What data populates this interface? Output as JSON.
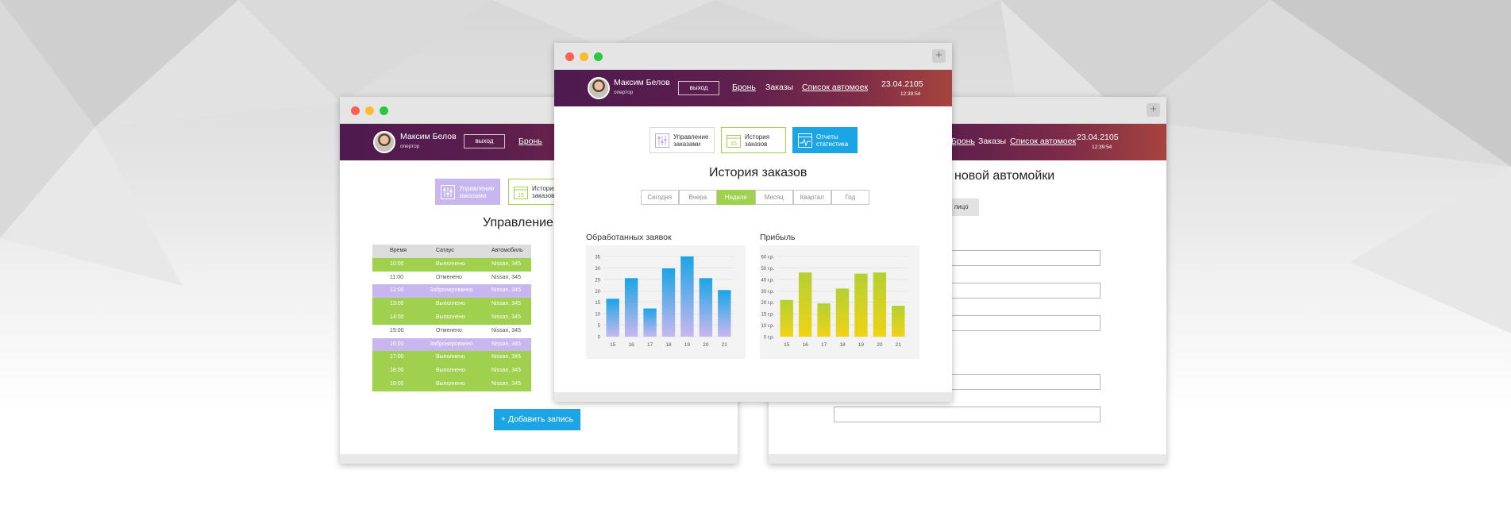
{
  "user": {
    "name": "Максим Белов",
    "role": "опертор"
  },
  "logout_label": "выход",
  "nav": {
    "bron": "Бронь",
    "orders": "Заказы",
    "washes": "Список автомоек"
  },
  "datetime": {
    "date": "23.04.2105",
    "time": "12:39:54"
  },
  "tiles": {
    "manage": "Управление заказами",
    "history": "История заказов",
    "reports": "Отчеты статистика"
  },
  "left_window": {
    "title": "Управление за",
    "table": {
      "headers": [
        "Время",
        "Сатаус",
        "Автомобиль"
      ],
      "rows": [
        {
          "time": "10:00",
          "status": "Выполнено",
          "car": "Nissan, 345",
          "color": "green"
        },
        {
          "time": "11:00",
          "status": "Отменено",
          "car": "Nissan, 345",
          "color": "white"
        },
        {
          "time": "12:00",
          "status": "Забронированно",
          "car": "Nissan, 345",
          "color": "lavender"
        },
        {
          "time": "13:00",
          "status": "Выполнено",
          "car": "Nissan, 345",
          "color": "green"
        },
        {
          "time": "14:00",
          "status": "Выполнено",
          "car": "Nissan, 345",
          "color": "green"
        },
        {
          "time": "15:00",
          "status": "Отменено",
          "car": "Nissan, 345",
          "color": "white"
        },
        {
          "time": "16:00",
          "status": "Забронированно",
          "car": "Nissan, 345",
          "color": "lavender"
        },
        {
          "time": "17:00",
          "status": "Выполнено",
          "car": "Nissan, 345",
          "color": "green"
        },
        {
          "time": "18:00",
          "status": "Выполнено",
          "car": "Nissan, 345",
          "color": "green"
        },
        {
          "time": "19:00",
          "status": "Выполнено",
          "car": "Nissan, 345",
          "color": "green"
        }
      ]
    },
    "add_button": "Добавить запись"
  },
  "center_window": {
    "title": "История заказов",
    "periods": [
      "Сегодня",
      "Вчера",
      "Неделя",
      "Месяц",
      "Квартал",
      "Год"
    ],
    "active_period": "Неделя"
  },
  "right_window": {
    "title": "новой автомойки",
    "tab_label": "лицо"
  },
  "colors": {
    "header_start": "#4d1a4f",
    "header_end": "#a6443f",
    "green": "#9fd04e",
    "lavender": "#c8b6ee",
    "blue": "#1ba5e5",
    "bars_blue": "#1ba5e5",
    "bars_yellow": "#e4cf1f"
  },
  "chart_data": [
    {
      "type": "bar",
      "title": "Обработанных заявок",
      "categories": [
        "15",
        "16",
        "17",
        "18",
        "19",
        "20",
        "21"
      ],
      "values": [
        17.5,
        27,
        13,
        31.5,
        37,
        27,
        21.5
      ],
      "yticks": [
        "0",
        "5",
        "10",
        "15",
        "20",
        "25",
        "30",
        "35"
      ],
      "ylim": [
        0,
        37
      ]
    },
    {
      "type": "bar",
      "title": "Прибыль",
      "categories": [
        "15",
        "16",
        "17",
        "18",
        "19",
        "20",
        "21"
      ],
      "values": [
        16,
        28,
        14.5,
        21,
        27.5,
        28,
        13.5
      ],
      "yticks": [
        "0 г.р.",
        "10 г.р.",
        "15 г.р.",
        "20 г.р.",
        "30 г.р.",
        "40 г.р.",
        "50 г.р.",
        "60 г.р."
      ],
      "ylim": [
        0,
        35
      ]
    }
  ]
}
